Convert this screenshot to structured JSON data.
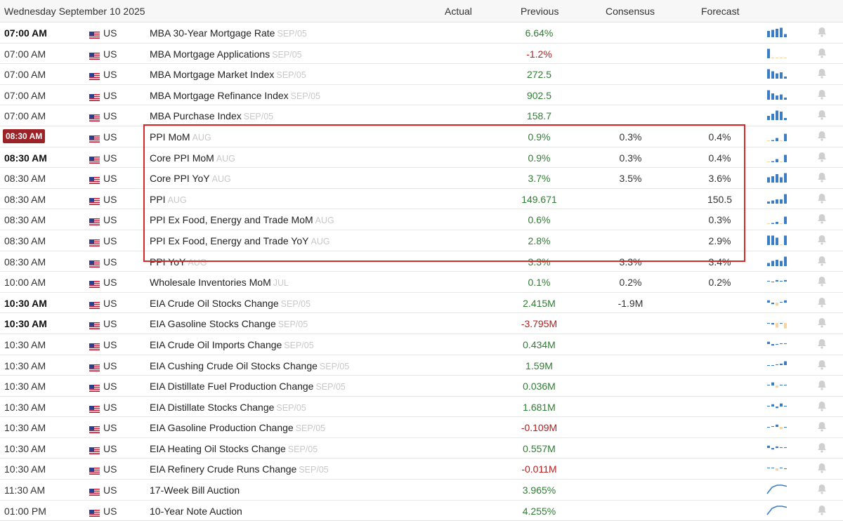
{
  "header": {
    "date": "Wednesday September 10 2025",
    "col_actual": "Actual",
    "col_previous": "Previous",
    "col_consensus": "Consensus",
    "col_forecast": "Forecast"
  },
  "colors": {
    "positive": "#2e7d32",
    "negative": "#b71c1c",
    "live_time_bg": "#9b2226",
    "highlight_border": "#d62828",
    "bar_blue": "#3b7dc4",
    "bar_orange": "#f3d5a4"
  },
  "rows": [
    {
      "time": "07:00 AM",
      "time_style": "bold",
      "country": "US",
      "event": "MBA 30-Year Mortgage Rate",
      "ref": "SEP/05",
      "actual": "",
      "previous": "6.64%",
      "prev_sign": "pos",
      "consensus": "",
      "forecast": "",
      "spark": "bars",
      "spark_values": [
        6,
        7,
        8,
        9,
        3
      ]
    },
    {
      "time": "07:00 AM",
      "time_style": "",
      "country": "US",
      "event": "MBA Mortgage Applications",
      "ref": "SEP/05",
      "actual": "",
      "previous": "-1.2%",
      "prev_sign": "neg",
      "consensus": "",
      "forecast": "",
      "spark": "bars",
      "spark_values": [
        9,
        0,
        0,
        0,
        0
      ]
    },
    {
      "time": "07:00 AM",
      "time_style": "",
      "country": "US",
      "event": "MBA Mortgage Market Index",
      "ref": "SEP/05",
      "actual": "",
      "previous": "272.5",
      "prev_sign": "pos",
      "consensus": "",
      "forecast": "",
      "spark": "bars",
      "spark_values": [
        9,
        7,
        5,
        6,
        2
      ]
    },
    {
      "time": "07:00 AM",
      "time_style": "",
      "country": "US",
      "event": "MBA Mortgage Refinance Index",
      "ref": "SEP/05",
      "actual": "",
      "previous": "902.5",
      "prev_sign": "pos",
      "consensus": "",
      "forecast": "",
      "spark": "bars",
      "spark_values": [
        9,
        6,
        4,
        5,
        2
      ]
    },
    {
      "time": "07:00 AM",
      "time_style": "",
      "country": "US",
      "event": "MBA Purchase Index",
      "ref": "SEP/05",
      "actual": "",
      "previous": "158.7",
      "prev_sign": "pos",
      "consensus": "",
      "forecast": "",
      "spark": "bars",
      "spark_values": [
        4,
        6,
        9,
        8,
        2
      ]
    },
    {
      "time": "08:30 AM",
      "time_style": "live",
      "country": "US",
      "event": "PPI MoM",
      "ref": "AUG",
      "actual": "",
      "previous": "0.9%",
      "prev_sign": "pos",
      "consensus": "0.3%",
      "forecast": "0.4%",
      "spark": "bars",
      "spark_values": [
        0,
        1,
        3,
        0,
        7
      ]
    },
    {
      "time": "08:30 AM",
      "time_style": "bold",
      "country": "US",
      "event": "Core PPI MoM",
      "ref": "AUG",
      "actual": "",
      "previous": "0.9%",
      "prev_sign": "pos",
      "consensus": "0.3%",
      "forecast": "0.4%",
      "spark": "bars",
      "spark_values": [
        0,
        1,
        3,
        0,
        7
      ]
    },
    {
      "time": "08:30 AM",
      "time_style": "",
      "country": "US",
      "event": "Core PPI YoY",
      "ref": "AUG",
      "actual": "",
      "previous": "3.7%",
      "prev_sign": "pos",
      "consensus": "3.5%",
      "forecast": "3.6%",
      "spark": "bars",
      "spark_values": [
        5,
        6,
        8,
        5,
        9
      ]
    },
    {
      "time": "08:30 AM",
      "time_style": "",
      "country": "US",
      "event": "PPI",
      "ref": "AUG",
      "actual": "",
      "previous": "149.671",
      "prev_sign": "pos",
      "consensus": "",
      "forecast": "150.5",
      "spark": "bars",
      "spark_values": [
        2,
        3,
        4,
        4,
        9
      ]
    },
    {
      "time": "08:30 AM",
      "time_style": "",
      "country": "US",
      "event": "PPI Ex Food, Energy and Trade MoM",
      "ref": "AUG",
      "actual": "",
      "previous": "0.6%",
      "prev_sign": "pos",
      "consensus": "",
      "forecast": "0.3%",
      "spark": "bars",
      "spark_values": [
        0,
        1,
        2,
        0,
        7
      ]
    },
    {
      "time": "08:30 AM",
      "time_style": "",
      "country": "US",
      "event": "PPI Ex Food, Energy and Trade YoY",
      "ref": "AUG",
      "actual": "",
      "previous": "2.8%",
      "prev_sign": "pos",
      "consensus": "",
      "forecast": "2.9%",
      "spark": "bars",
      "spark_values": [
        9,
        9,
        7,
        0,
        9
      ]
    },
    {
      "time": "08:30 AM",
      "time_style": "",
      "country": "US",
      "event": "PPI YoY",
      "ref": "AUG",
      "actual": "",
      "previous": "3.3%",
      "prev_sign": "pos",
      "consensus": "3.3%",
      "forecast": "3.4%",
      "spark": "bars",
      "spark_values": [
        3,
        5,
        6,
        5,
        9
      ]
    },
    {
      "time": "10:00 AM",
      "time_style": "",
      "country": "US",
      "event": "Wholesale Inventories MoM",
      "ref": "JUL",
      "actual": "",
      "previous": "0.1%",
      "prev_sign": "pos",
      "consensus": "0.2%",
      "forecast": "0.2%",
      "spark": "mixed",
      "spark_values": [
        1,
        -1,
        2,
        1,
        2
      ]
    },
    {
      "time": "10:30 AM",
      "time_style": "bold",
      "country": "US",
      "event": "EIA Crude Oil Stocks Change",
      "ref": "SEP/05",
      "actual": "",
      "previous": "2.415M",
      "prev_sign": "pos",
      "consensus": "-1.9M",
      "forecast": "",
      "spark": "mixed",
      "spark_values": [
        3,
        -2,
        -4,
        1,
        3
      ]
    },
    {
      "time": "10:30 AM",
      "time_style": "bold",
      "country": "US",
      "event": "EIA Gasoline Stocks Change",
      "ref": "SEP/05",
      "actual": "",
      "previous": "-3.795M",
      "prev_sign": "neg",
      "consensus": "",
      "forecast": "",
      "spark": "mixed",
      "spark_values": [
        -1,
        -2,
        -6,
        -1,
        -7
      ]
    },
    {
      "time": "10:30 AM",
      "time_style": "",
      "country": "US",
      "event": "EIA Crude Oil Imports Change",
      "ref": "SEP/05",
      "actual": "",
      "previous": "0.434M",
      "prev_sign": "pos",
      "consensus": "",
      "forecast": "",
      "spark": "mixed",
      "spark_values": [
        3,
        -2,
        -1,
        1,
        1
      ]
    },
    {
      "time": "10:30 AM",
      "time_style": "",
      "country": "US",
      "event": "EIA Cushing Crude Oil Stocks Change",
      "ref": "SEP/05",
      "actual": "",
      "previous": "1.59M",
      "prev_sign": "pos",
      "consensus": "",
      "forecast": "",
      "spark": "mixed",
      "spark_values": [
        -1,
        -1,
        1,
        2,
        5
      ]
    },
    {
      "time": "10:30 AM",
      "time_style": "",
      "country": "US",
      "event": "EIA Distillate Fuel Production Change",
      "ref": "SEP/05",
      "actual": "",
      "previous": "0.036M",
      "prev_sign": "pos",
      "consensus": "",
      "forecast": "",
      "spark": "mixed",
      "spark_values": [
        1,
        4,
        -3,
        1,
        1
      ]
    },
    {
      "time": "10:30 AM",
      "time_style": "",
      "country": "US",
      "event": "EIA Distillate Stocks Change",
      "ref": "SEP/05",
      "actual": "",
      "previous": "1.681M",
      "prev_sign": "pos",
      "consensus": "",
      "forecast": "",
      "spark": "mixed",
      "spark_values": [
        1,
        3,
        -2,
        4,
        1
      ]
    },
    {
      "time": "10:30 AM",
      "time_style": "",
      "country": "US",
      "event": "EIA Gasoline Production Change",
      "ref": "SEP/05",
      "actual": "",
      "previous": "-0.109M",
      "prev_sign": "neg",
      "consensus": "",
      "forecast": "",
      "spark": "mixed",
      "spark_values": [
        -1,
        1,
        3,
        -3,
        -1
      ]
    },
    {
      "time": "10:30 AM",
      "time_style": "",
      "country": "US",
      "event": "EIA Heating Oil Stocks Change",
      "ref": "SEP/05",
      "actual": "",
      "previous": "0.557M",
      "prev_sign": "pos",
      "consensus": "",
      "forecast": "",
      "spark": "mixed",
      "spark_values": [
        3,
        -2,
        2,
        1,
        1
      ]
    },
    {
      "time": "10:30 AM",
      "time_style": "",
      "country": "US",
      "event": "EIA Refinery Crude Runs Change",
      "ref": "SEP/05",
      "actual": "",
      "previous": "-0.011M",
      "prev_sign": "neg",
      "consensus": "",
      "forecast": "",
      "spark": "mixed",
      "spark_values": [
        1,
        1,
        -3,
        1,
        -1
      ]
    },
    {
      "time": "11:30 AM",
      "time_style": "",
      "country": "US",
      "event": "17-Week Bill Auction",
      "ref": "",
      "actual": "",
      "previous": "3.965%",
      "prev_sign": "pos",
      "consensus": "",
      "forecast": "",
      "spark": "line",
      "spark_values": [
        9,
        3,
        1,
        1,
        2
      ]
    },
    {
      "time": "01:00 PM",
      "time_style": "",
      "country": "US",
      "event": "10-Year Note Auction",
      "ref": "",
      "actual": "",
      "previous": "4.255%",
      "prev_sign": "pos",
      "consensus": "",
      "forecast": "",
      "spark": "line",
      "spark_values": [
        9,
        3,
        1,
        1,
        2
      ]
    }
  ],
  "highlighted_group": "PPI rows 08:30 AM"
}
